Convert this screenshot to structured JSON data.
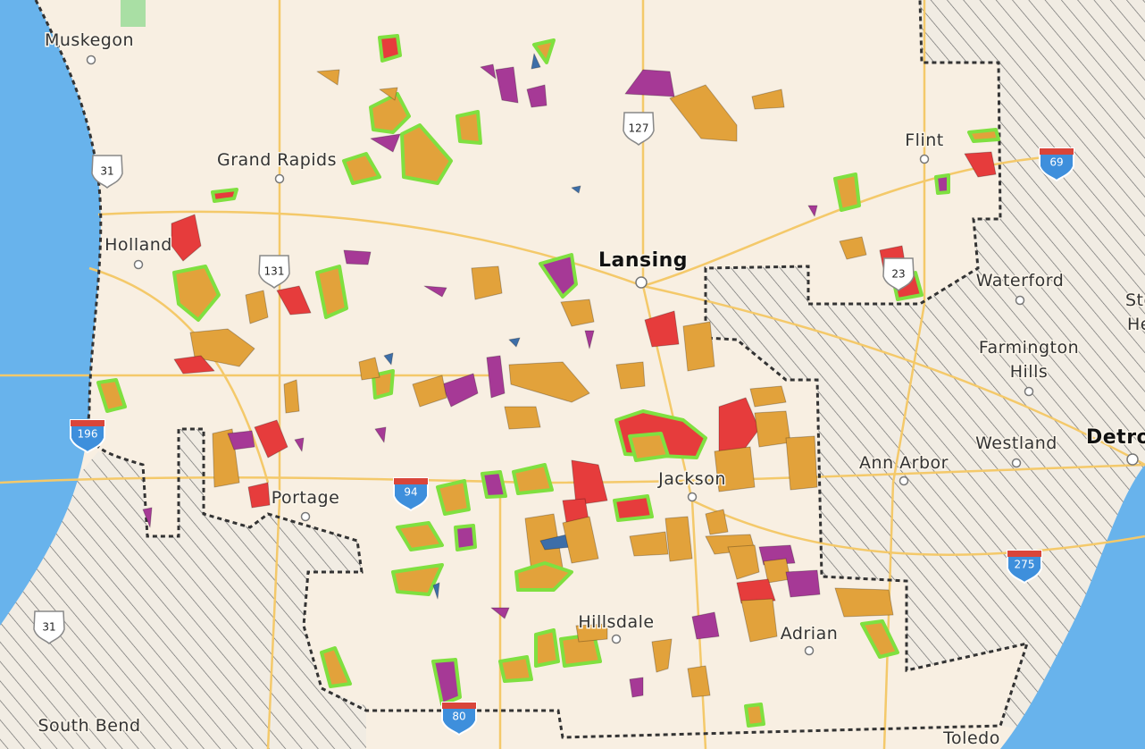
{
  "cities": [
    {
      "label": "Muskegon"
    },
    {
      "label": "Grand Rapids"
    },
    {
      "label": "Holland"
    },
    {
      "label": "Lansing"
    },
    {
      "label": "Flint"
    },
    {
      "label": "Waterford"
    },
    {
      "label": "Sterling"
    },
    {
      "label": "Heights"
    },
    {
      "label": "Farmington"
    },
    {
      "label": "Hills"
    },
    {
      "label": "Westland"
    },
    {
      "label": "Detroit"
    },
    {
      "label": "Ann Arbor"
    },
    {
      "label": "Jackson"
    },
    {
      "label": "Portage"
    },
    {
      "label": "Hillsdale"
    },
    {
      "label": "Adrian"
    },
    {
      "label": "South Bend"
    },
    {
      "label": "Toledo"
    }
  ],
  "shields": [
    {
      "label": "31"
    },
    {
      "label": "127"
    },
    {
      "label": "131"
    },
    {
      "label": "23"
    },
    {
      "label": "31"
    },
    {
      "label": "69"
    },
    {
      "label": "196"
    },
    {
      "label": "94"
    },
    {
      "label": "275"
    },
    {
      "label": "80"
    }
  ]
}
